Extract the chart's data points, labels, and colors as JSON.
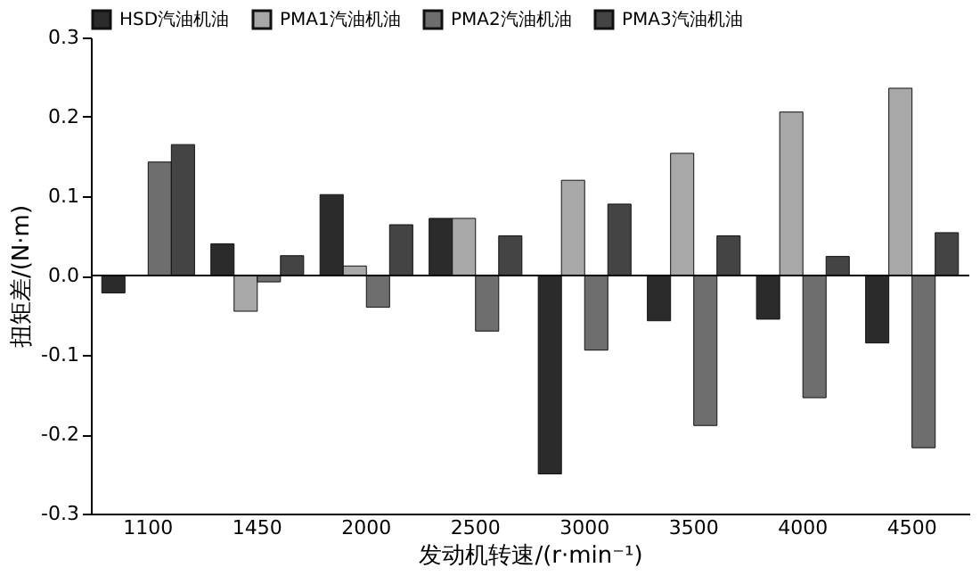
{
  "chart_data": {
    "type": "bar",
    "xlabel": "发动机转速/(r·min⁻¹)",
    "ylabel": "扭矩差/(N·m)",
    "categories": [
      "1100",
      "1450",
      "2000",
      "2500",
      "3000",
      "3500",
      "4000",
      "4500"
    ],
    "series": [
      {
        "name": "HSD汽油机油",
        "color": "#2b2b2b",
        "values": [
          -0.022,
          0.04,
          0.102,
          0.072,
          -0.25,
          -0.057,
          -0.055,
          -0.085
        ]
      },
      {
        "name": "PMA1汽油机油",
        "color": "#a8a8a8",
        "values": [
          null,
          -0.045,
          0.012,
          0.072,
          0.12,
          0.154,
          0.206,
          0.236
        ]
      },
      {
        "name": "PMA2汽油机油",
        "color": "#6e6e6e",
        "values": [
          0.143,
          -0.008,
          -0.04,
          -0.07,
          -0.094,
          -0.189,
          -0.154,
          -0.217
        ]
      },
      {
        "name": "PMA3汽油机油",
        "color": "#444444",
        "values": [
          0.165,
          0.025,
          0.064,
          0.05,
          0.09,
          0.05,
          0.024,
          0.054
        ]
      }
    ],
    "ylim": [
      -0.3,
      0.3
    ],
    "yticks": [
      -0.3,
      -0.2,
      -0.1,
      {
        "value": 0,
        "label": "0.0"
      },
      0.1,
      0.2,
      0.3
    ],
    "ref_lines": [
      {
        "axis": "y",
        "value": 0
      }
    ],
    "grid": false,
    "legend": "top"
  }
}
